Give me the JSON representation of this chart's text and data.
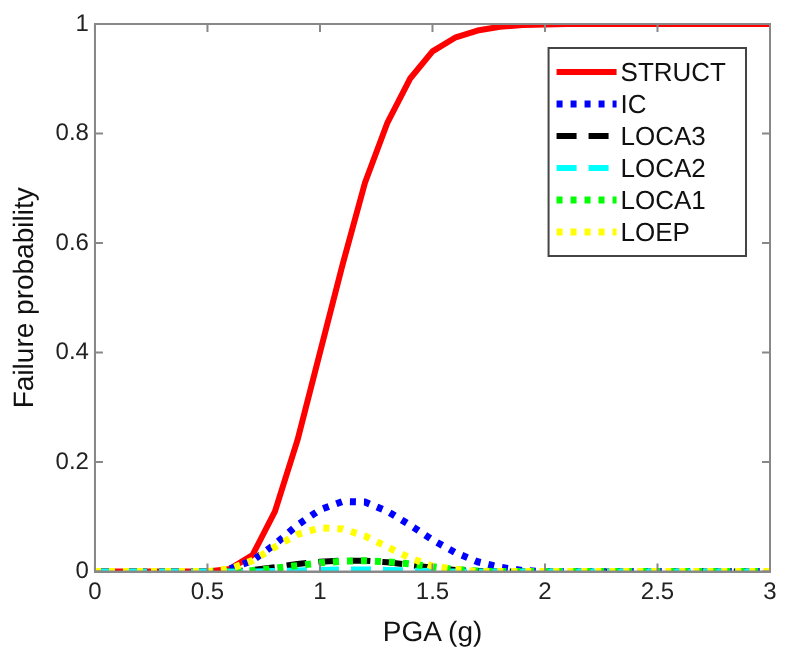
{
  "chart_data": {
    "type": "line",
    "xlabel": "PGA (g)",
    "ylabel": "Failure probability",
    "xlim": [
      0,
      3
    ],
    "xticks": [
      0,
      0.5,
      1,
      1.5,
      2,
      2.5,
      3
    ],
    "ylim": [
      0,
      1
    ],
    "yticks": [
      0,
      0.2,
      0.4,
      0.6,
      0.8,
      1
    ],
    "grid": false,
    "legend": "top right",
    "marker": "none",
    "x": [
      0,
      0.1,
      0.2,
      0.3,
      0.4,
      0.5,
      0.6,
      0.7,
      0.8,
      0.9,
      1,
      1.1,
      1.2,
      1.3,
      1.4,
      1.5,
      1.6,
      1.7,
      1.8,
      1.9,
      2,
      2.1,
      2.2,
      2.3,
      2.4,
      2.5,
      2.6,
      2.7,
      2.8,
      2.9,
      3
    ],
    "series": [
      {
        "name": "STRUCT",
        "color": "#ff0000",
        "line_style": "solid",
        "values": [
          0,
          0,
          0,
          0,
          0,
          0,
          0.005,
          0.03,
          0.11,
          0.24,
          0.4,
          0.56,
          0.71,
          0.82,
          0.9,
          0.95,
          0.975,
          0.988,
          0.995,
          0.998,
          0.999,
          1,
          1,
          1,
          1,
          1,
          1,
          1,
          1,
          1,
          1
        ]
      },
      {
        "name": "IC",
        "color": "#0000ff",
        "line_style": "dotted",
        "values": [
          null,
          null,
          null,
          null,
          null,
          null,
          0.005,
          0.02,
          0.05,
          0.085,
          0.113,
          0.128,
          0.127,
          0.11,
          0.085,
          0.058,
          0.035,
          0.018,
          0.008,
          0.002,
          0,
          0,
          0,
          0,
          0,
          0,
          0,
          0,
          0,
          0,
          0
        ]
      },
      {
        "name": "LOCA3",
        "color": "#000000",
        "line_style": "dashed",
        "values": [
          0,
          0,
          0,
          0,
          0,
          0,
          0,
          0.003,
          0.008,
          0.014,
          0.018,
          0.02,
          0.02,
          0.017,
          0.012,
          0.007,
          0.003,
          0.001,
          0,
          0,
          0,
          0,
          0,
          0,
          0,
          0,
          0,
          0,
          0,
          0,
          0
        ]
      },
      {
        "name": "LOCA2",
        "color": "#00ffff",
        "line_style": "dashed",
        "values": [
          0,
          0,
          0,
          0,
          0,
          0,
          0,
          0,
          0.001,
          0.002,
          0.003,
          0.004,
          0.004,
          0.003,
          0.002,
          0.001,
          0,
          0,
          0,
          0,
          0,
          0,
          0,
          0,
          0,
          0,
          0,
          0,
          0,
          0,
          0
        ]
      },
      {
        "name": "LOCA1",
        "color": "#00ff00",
        "line_style": "dotted",
        "values": [
          null,
          null,
          null,
          null,
          null,
          0,
          0,
          0.002,
          0.006,
          0.011,
          0.016,
          0.019,
          0.02,
          0.018,
          0.014,
          0.009,
          0.004,
          0.001,
          0,
          0,
          0,
          0,
          0,
          0,
          0,
          0,
          0,
          0,
          0,
          0,
          0
        ]
      },
      {
        "name": "LOEP",
        "color": "#ffff00",
        "line_style": "dotted",
        "values": [
          0,
          0,
          0,
          0,
          0,
          0,
          0.005,
          0.02,
          0.045,
          0.068,
          0.08,
          0.078,
          0.065,
          0.045,
          0.025,
          0.01,
          0.004,
          0,
          0,
          0,
          0,
          0,
          0,
          0,
          0,
          0,
          0,
          0,
          0,
          0,
          0
        ]
      }
    ]
  }
}
